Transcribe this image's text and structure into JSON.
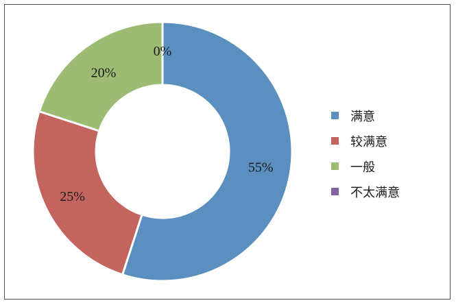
{
  "chart_data": {
    "type": "pie",
    "donut": true,
    "title": "",
    "labels": [
      "满意",
      "较满意",
      "一般",
      "不太满意"
    ],
    "values": [
      55,
      25,
      20,
      0
    ],
    "value_labels": [
      "55%",
      "25%",
      "20%",
      "0%"
    ],
    "colors": [
      "#5b8fc0",
      "#c4645f",
      "#9dbb72",
      "#8064a2"
    ],
    "legend_position": "right"
  }
}
